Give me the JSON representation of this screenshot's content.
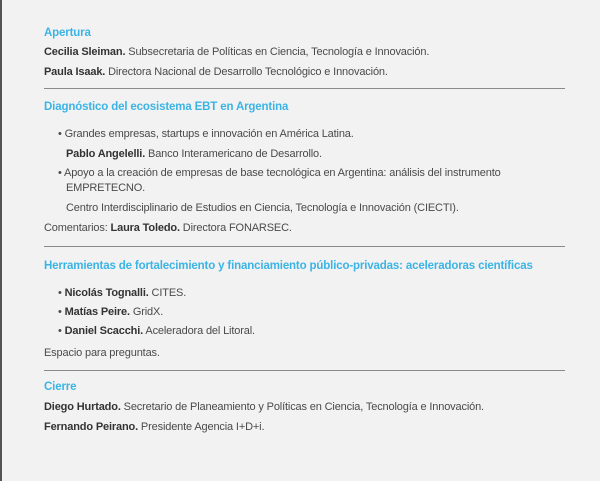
{
  "sections": [
    {
      "title": "Apertura",
      "lines": [
        {
          "name": "Cecilia Sleiman.",
          "text": " Subsecretaria de Políticas en Ciencia, Tecnología e Innovación."
        },
        {
          "name": "Paula Isaak.",
          "text": " Directora Nacional de Desarrollo Tecnológico e Innovación."
        }
      ]
    },
    {
      "title": "Diagnóstico del ecosistema EBT en Argentina",
      "bullet1": "Grandes empresas, startups e innovación en América Latina.",
      "bullet1_speaker": {
        "name": "Pablo Angelelli.",
        "text": " Banco Interamericano de Desarrollo."
      },
      "bullet2_line1": "Apoyo a la creación de empresas de base tecnológica en Argentina: análisis del instrumento",
      "bullet2_line2": "EMPRETECNO.",
      "bullet2_speaker": "Centro Interdisciplinario de Estudios en Ciencia, Tecnología e Innovación (CIECTI).",
      "comments_label": "Comentarios: ",
      "comments_name": "Laura Toledo.",
      "comments_text": " Directora FONARSEC."
    },
    {
      "title": "Herramientas de fortalecimiento y financiamiento público-privadas: aceleradoras científicas",
      "bullets": [
        {
          "name": "Nicolás Tognalli.",
          "text": " CITES."
        },
        {
          "name": "Matías Peire.",
          "text": " GridX."
        },
        {
          "name": "Daniel Scacchi.",
          "text": " Aceleradora del Litoral."
        }
      ],
      "note": "Espacio para preguntas."
    },
    {
      "title": "Cierre",
      "lines": [
        {
          "name": "Diego Hurtado.",
          "text": " Secretario de Planeamiento y Políticas en Ciencia, Tecnología e Innovación."
        },
        {
          "name": "Fernando Peirano.",
          "text": " Presidente Agencia I+D+i."
        }
      ]
    }
  ],
  "bullet_char": "•",
  "colors": {
    "heading": "#3bb4e5",
    "text": "#4a4a4a",
    "background": "#f2f2f2"
  }
}
